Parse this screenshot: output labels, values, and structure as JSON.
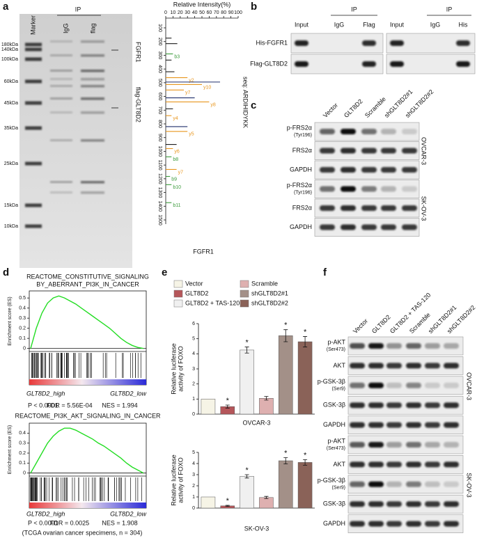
{
  "a": {
    "label": "a",
    "gel": {
      "lanes": [
        "Marker",
        "IgG",
        "flag"
      ],
      "ip": "IP",
      "markers": [
        "180kDa",
        "140kDa",
        "100kDa",
        "60kDa",
        "45kDa",
        "35kDa",
        "25kDa",
        "15kDa",
        "10kDa"
      ],
      "targets": [
        "FGFR1",
        "flag-GLT8D2"
      ]
    },
    "spectrum": {
      "type": "bar",
      "title": "Relative Intensity(%)",
      "xlim": [
        0,
        100
      ],
      "xticks": [
        0,
        10,
        20,
        30,
        40,
        50,
        60,
        70,
        80,
        90,
        100
      ],
      "ylim": [
        100,
        1500
      ],
      "yticks": [
        100,
        200,
        300,
        400,
        500,
        600,
        700,
        800,
        900,
        1000,
        1100,
        1200,
        1300,
        1400,
        1500
      ],
      "sequence": "seq: ARDIHIDYKK",
      "xlabel": "FGFR1",
      "peaks": [
        {
          "mz": 175,
          "intensity": 8,
          "label": null,
          "color": "#1a1a1a"
        },
        {
          "mz": 215,
          "intensity": 16,
          "label": null,
          "color": "#1a1a1a"
        },
        {
          "mz": 290,
          "intensity": 10,
          "label": "b3",
          "color": "#3a9a3a"
        },
        {
          "mz": 335,
          "intensity": 8,
          "label": null,
          "color": "#1a1a1a"
        },
        {
          "mz": 420,
          "intensity": 12,
          "label": null,
          "color": "#1a1a1a"
        },
        {
          "mz": 463,
          "intensity": 30,
          "label": "y2",
          "color": "#e8961e"
        },
        {
          "mz": 495,
          "intensity": 75,
          "label": null,
          "color": "#1f2f6b"
        },
        {
          "mz": 513,
          "intensity": 50,
          "label": "y10",
          "color": "#e8961e"
        },
        {
          "mz": 553,
          "intensity": 25,
          "label": "y7",
          "color": "#e8961e"
        },
        {
          "mz": 610,
          "intensity": 40,
          "label": null,
          "color": "#1f2f6b"
        },
        {
          "mz": 640,
          "intensity": 60,
          "label": "y8",
          "color": "#e8961e"
        },
        {
          "mz": 690,
          "intensity": 10,
          "label": null,
          "color": "#1a1a1a"
        },
        {
          "mz": 740,
          "intensity": 8,
          "label": "y4",
          "color": "#e8961e"
        },
        {
          "mz": 820,
          "intensity": 30,
          "label": null,
          "color": "#1f2f6b"
        },
        {
          "mz": 855,
          "intensity": 30,
          "label": "y5",
          "color": "#e8961e"
        },
        {
          "mz": 950,
          "intensity": 15,
          "label": null,
          "color": "#1a1a1a"
        },
        {
          "mz": 980,
          "intensity": 10,
          "label": "y6",
          "color": "#e8961e"
        },
        {
          "mz": 1040,
          "intensity": 8,
          "label": "b8",
          "color": "#3a9a3a"
        },
        {
          "mz": 1132,
          "intensity": 15,
          "label": "y7",
          "color": "#e8961e"
        },
        {
          "mz": 1183,
          "intensity": 6,
          "label": "b9",
          "color": "#3a9a3a"
        },
        {
          "mz": 1243,
          "intensity": 8,
          "label": "b10",
          "color": "#3a9a3a"
        },
        {
          "mz": 1374,
          "intensity": 8,
          "label": "b11",
          "color": "#3a9a3a"
        }
      ]
    }
  },
  "b": {
    "label": "b",
    "left": {
      "ip": "IP",
      "lanes": [
        "Input",
        "IgG",
        "Flag"
      ]
    },
    "right": {
      "ip": "IP",
      "lanes": [
        "Input",
        "IgG",
        "His"
      ]
    },
    "rows": [
      "His-FGFR1",
      "Flag-GLT8D2"
    ]
  },
  "c": {
    "label": "c",
    "lanes": [
      "Vector",
      "GLT8D2",
      "Scramble",
      "shGLT8D2#1",
      "shGLT8D2#2"
    ],
    "rows": [
      {
        "name": "p-FRS2α",
        "sub": "(Tyr196)"
      },
      {
        "name": "FRS2α"
      },
      {
        "name": "GAPDH"
      },
      {
        "name": "p-FRS2α",
        "sub": "(Tyr196)"
      },
      {
        "name": "FRS2α"
      },
      {
        "name": "GAPDH"
      }
    ],
    "groups": [
      "OVCAR-3",
      "SK-OV-3"
    ]
  },
  "d": {
    "label": "d",
    "ylabel": "Enrichment score (ES)",
    "note": "(TCGA ovarian cancer specimens, n = 304)",
    "plots": [
      {
        "type": "line",
        "title": [
          "REACTOME_CONSTITUTIVE_SIGNALING",
          "BY_ABERRANT_PI3K_IN_CANCER"
        ],
        "color": "#22dd22",
        "ylim": [
          -0.03,
          0.57
        ],
        "yticks": [
          0,
          0.1,
          0.2,
          0.3,
          0.4,
          0.5
        ],
        "values": [
          0,
          0.2,
          0.35,
          0.45,
          0.5,
          0.52,
          0.5,
          0.47,
          0.44,
          0.4,
          0.36,
          0.32,
          0.28,
          0.24,
          0.2,
          0.15,
          0.1,
          0.06,
          0.03,
          0.01,
          0
        ],
        "high": "GLT8D2_high",
        "low": "GLT8D2_low",
        "stats": [
          "P < 0.0001",
          "FDR = 5.56E-04",
          "NES = 1.994"
        ]
      },
      {
        "type": "line",
        "title": [
          "REACTOME_PI3K_AKT_SIGNALING_IN_CANCER"
        ],
        "color": "#22dd22",
        "ylim": [
          -0.03,
          0.5
        ],
        "yticks": [
          0,
          0.1,
          0.2,
          0.3,
          0.4
        ],
        "values": [
          0,
          0.1,
          0.2,
          0.3,
          0.37,
          0.42,
          0.45,
          0.45,
          0.43,
          0.4,
          0.37,
          0.34,
          0.3,
          0.27,
          0.23,
          0.19,
          0.15,
          0.1,
          0.06,
          0.03,
          0
        ],
        "high": "GLT8D2_high",
        "low": "GLT8D2_low",
        "stats": [
          "P < 0.0001",
          "FDR = 0.0025",
          "NES = 1.908"
        ]
      }
    ]
  },
  "e": {
    "label": "e",
    "categories": [
      "Vector",
      "GLT8D2",
      "GLT8D2 + TAS-120",
      "Scramble",
      "shGLT8D2#1",
      "shGLT8D2#2"
    ],
    "colors": [
      "#f6f4e6",
      "#b5565a",
      "#f0f0f0",
      "#deb0b0",
      "#a39088",
      "#8a6258"
    ],
    "ylabel": [
      "Relative luciferase",
      "activity of FOXO"
    ],
    "charts": [
      {
        "type": "bar",
        "title": "OVCAR-3",
        "ylim": [
          0,
          6
        ],
        "yticks": [
          0,
          1,
          2,
          3,
          4,
          5,
          6
        ],
        "values": [
          1,
          0.5,
          4.25,
          1.05,
          5.2,
          4.8
        ],
        "errors": [
          0,
          0.1,
          0.2,
          0.12,
          0.4,
          0.35
        ],
        "sig": [
          null,
          "*",
          "*",
          null,
          "*",
          "*"
        ]
      },
      {
        "type": "bar",
        "title": "SK-OV-3",
        "ylim": [
          0,
          5
        ],
        "yticks": [
          0,
          1,
          2,
          3,
          4,
          5
        ],
        "values": [
          1,
          0.2,
          2.85,
          0.95,
          4.25,
          4.1
        ],
        "errors": [
          0,
          0.05,
          0.15,
          0.1,
          0.28,
          0.25
        ],
        "sig": [
          null,
          "*",
          "*",
          null,
          "*",
          "*"
        ]
      }
    ]
  },
  "f": {
    "label": "f",
    "lanes": [
      "Vector",
      "GLT8D2",
      "GLT8D2 + TAS-120",
      "Scramble",
      "shGLT8D2#1",
      "shGLT8D2#2"
    ],
    "rows": [
      {
        "name": "p-AKT",
        "sub": "(Ser473)"
      },
      {
        "name": "AKT"
      },
      {
        "name": "p-GSK-3β",
        "sub": "(Ser9)"
      },
      {
        "name": "GSK-3β"
      },
      {
        "name": "GAPDH"
      },
      {
        "name": "p-AKT",
        "sub": "(Ser473)"
      },
      {
        "name": "AKT"
      },
      {
        "name": "p-GSK-3β",
        "sub": "(Ser9)"
      },
      {
        "name": "GSK-3β"
      },
      {
        "name": "GAPDH"
      }
    ],
    "groups": [
      "OVCAR-3",
      "SK-OV-3"
    ]
  }
}
